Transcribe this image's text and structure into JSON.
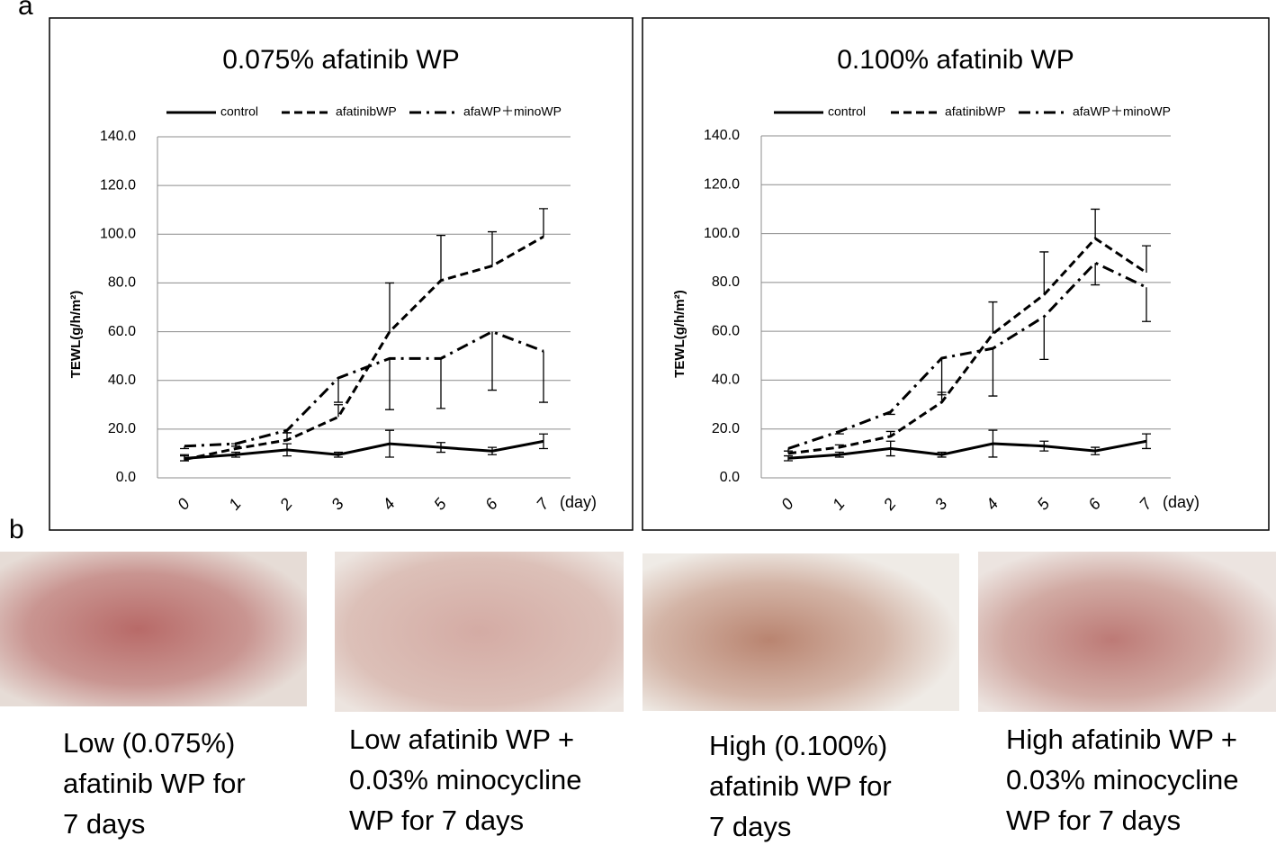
{
  "panel_labels": [
    "a",
    "b"
  ],
  "chart_data": [
    {
      "type": "line",
      "title": "0.075% afatinib WP",
      "y_label": "TEWL(g/h/m²)",
      "x_label": "(day)",
      "categories": [
        "0",
        "1",
        "2",
        "3",
        "4",
        "5",
        "6",
        "7"
      ],
      "ylim": [
        0,
        140
      ],
      "yticks": [
        {
          "value": 0,
          "label": "0.0"
        },
        {
          "value": 20,
          "label": "20.0"
        },
        {
          "value": 40,
          "label": "40.0"
        },
        {
          "value": 60,
          "label": "60.0"
        },
        {
          "value": 80,
          "label": "80.0"
        },
        {
          "value": 100,
          "label": "100.0"
        },
        {
          "value": 120,
          "label": "120.0"
        },
        {
          "value": 140,
          "label": "140.0"
        }
      ],
      "grid": true,
      "series": [
        {
          "name": "control",
          "color": "#000000",
          "line_style": "solid",
          "error_direction": "both",
          "values": [
            8,
            9.5,
            11.5,
            9.5,
            14,
            12.5,
            11,
            15
          ],
          "errors": [
            1,
            1,
            2.5,
            1,
            5.5,
            2,
            1.5,
            3
          ]
        },
        {
          "name": "afatinibWP",
          "color": "#000000",
          "line_style": "dashed",
          "error_direction": "up",
          "values": [
            7.5,
            12,
            15.5,
            25,
            60,
            81,
            87,
            99
          ],
          "errors": [
            2,
            2,
            3,
            5,
            20,
            18.5,
            14,
            11.5
          ]
        },
        {
          "name": "afaWP＋minoWP",
          "color": "#000000",
          "line_style": "dashdot",
          "error_direction": "down",
          "values": [
            13,
            14,
            19.5,
            41,
            49,
            49,
            60,
            52
          ],
          "errors": [
            1,
            1,
            1,
            10,
            21,
            20.5,
            24,
            21
          ]
        }
      ]
    },
    {
      "type": "line",
      "title": "0.100% afatinib WP",
      "y_label": "TEWL(g/h/m²)",
      "x_label": "(day)",
      "categories": [
        "0",
        "1",
        "2",
        "3",
        "4",
        "5",
        "6",
        "7"
      ],
      "ylim": [
        0,
        140
      ],
      "yticks": [
        {
          "value": 0,
          "label": "0.0"
        },
        {
          "value": 20,
          "label": "20.0"
        },
        {
          "value": 40,
          "label": "40.0"
        },
        {
          "value": 60,
          "label": "60.0"
        },
        {
          "value": 80,
          "label": "80.0"
        },
        {
          "value": 100,
          "label": "100.0"
        },
        {
          "value": 120,
          "label": "120.0"
        },
        {
          "value": 140,
          "label": "140.0"
        }
      ],
      "grid": true,
      "series": [
        {
          "name": "control",
          "color": "#000000",
          "line_style": "solid",
          "error_direction": "both",
          "values": [
            8,
            9.5,
            12,
            9.5,
            14,
            13,
            11,
            15
          ],
          "errors": [
            1,
            1,
            3,
            1,
            5.5,
            2,
            1.5,
            3
          ]
        },
        {
          "name": "afatinibWP",
          "color": "#000000",
          "line_style": "dashed",
          "error_direction": "up",
          "values": [
            10,
            12.5,
            17,
            31,
            59,
            75,
            98,
            84
          ],
          "errors": [
            1,
            1,
            2,
            4,
            13,
            17.5,
            12,
            11
          ]
        },
        {
          "name": "afaWP＋minoWP",
          "color": "#000000",
          "line_style": "dashdot",
          "error_direction": "down",
          "values": [
            12,
            19,
            27,
            49,
            53,
            66,
            88,
            78
          ],
          "errors": [
            1,
            1,
            1,
            15,
            19.5,
            17.5,
            9,
            14
          ]
        }
      ]
    }
  ],
  "photos": [
    {
      "caption_lines": [
        "Low (0.075%)",
        "afatinib WP for",
        "7 days"
      ]
    },
    {
      "caption_lines": [
        "Low afatinib WP +",
        "0.03% minocycline",
        "WP for 7 days"
      ]
    },
    {
      "caption_lines": [
        "High (0.100%)",
        "afatinib WP for",
        "7 days"
      ]
    },
    {
      "caption_lines": [
        "High afatinib WP +",
        "0.03% minocycline",
        "WP for 7 days"
      ]
    }
  ]
}
